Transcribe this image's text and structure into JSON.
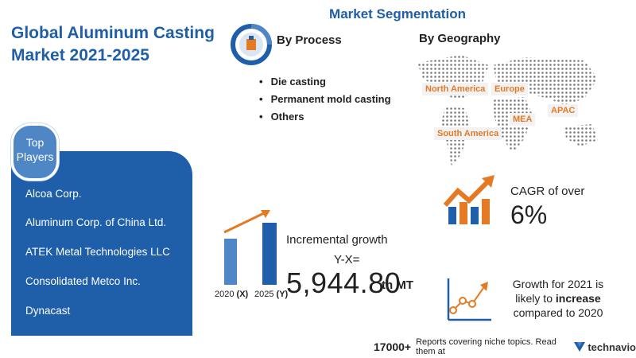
{
  "title": "Global Aluminum Casting Market 2021-2025",
  "top_players": {
    "badge": "Top Players",
    "items": [
      "Alcoa Corp.",
      "Aluminum Corp. of China Ltd.",
      "ATEK Metal Technologies LLC",
      "Consolidated Metco Inc.",
      "Dynacast"
    ]
  },
  "segmentation": {
    "title": "Market Segmentation",
    "process": {
      "label": "By Process",
      "items": [
        "Die casting",
        "Permanent mold casting",
        "Others"
      ]
    },
    "geography": {
      "label": "By Geography",
      "regions": [
        "North America",
        "Europe",
        "APAC",
        "MEA",
        "South America"
      ]
    }
  },
  "incremental": {
    "bar_x_year": "2020",
    "bar_x_tag": "(X)",
    "bar_y_year": "2025",
    "bar_y_tag": "(Y)",
    "title": "Incremental growth",
    "formula": "Y-X=",
    "value": "5,944.80",
    "unit": "th MT"
  },
  "cagr": {
    "label": "CAGR of over",
    "value": "6%"
  },
  "growth": {
    "line1": "Growth for 2021 is",
    "line2_prefix": "likely to",
    "line2_bold": "increase",
    "line3": "compared to 2020"
  },
  "footer": {
    "count": "17000+",
    "text": "Reports covering niche topics. Read them at",
    "brand": "technavio"
  },
  "colors": {
    "primary_blue": "#1f5ea8",
    "accent_orange": "#e57a24",
    "light_blue": "#4f86c6"
  }
}
